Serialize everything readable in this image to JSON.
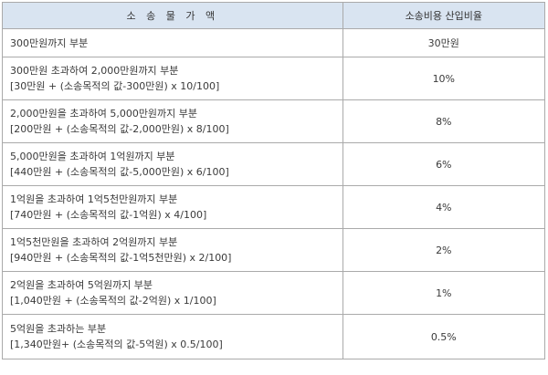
{
  "header": {
    "col1": "소 송 물 가 액",
    "col2": "소송비용 산입비율"
  },
  "rows": [
    {
      "range": "300만원까지 부분",
      "formula": "",
      "rate": "30만원"
    },
    {
      "range": "300만원 초과하여 2,000만원까지 부분",
      "formula": "[30만원 + (소송목적의 값-300만원) x 10/100]",
      "rate": "10%"
    },
    {
      "range": "2,000만원을 초과하여 5,000만원까지 부분",
      "formula": "[200만원 + (소송목적의 값-2,000만원) x 8/100]",
      "rate": "8%"
    },
    {
      "range": "5,000만원을 초과하여 1억원까지 부분",
      "formula": "[440만원 + (소송목적의 값-5,000만원) x 6/100]",
      "rate": "6%"
    },
    {
      "range": "1억원을 초과하여 1억5천만원까지 부분",
      "formula": "[740만원 + (소송목적의 값-1억원) x 4/100]",
      "rate": "4%"
    },
    {
      "range": "1억5천만원을 초과하여 2억원까지 부분",
      "formula": "[940만원 + (소송목적의 값-1억5천만원) x 2/100]",
      "rate": "2%"
    },
    {
      "range": "2억원을 초과하여 5억원까지 부분",
      "formula": "[1,040만원 + (소송목적의 값-2억원) x 1/100]",
      "rate": "1%"
    },
    {
      "range": "5억원을 초과하는 부분",
      "formula": "[1,340만원+ (소송목적의 값-5억원) x 0.5/100]",
      "rate": "0.5%"
    }
  ]
}
